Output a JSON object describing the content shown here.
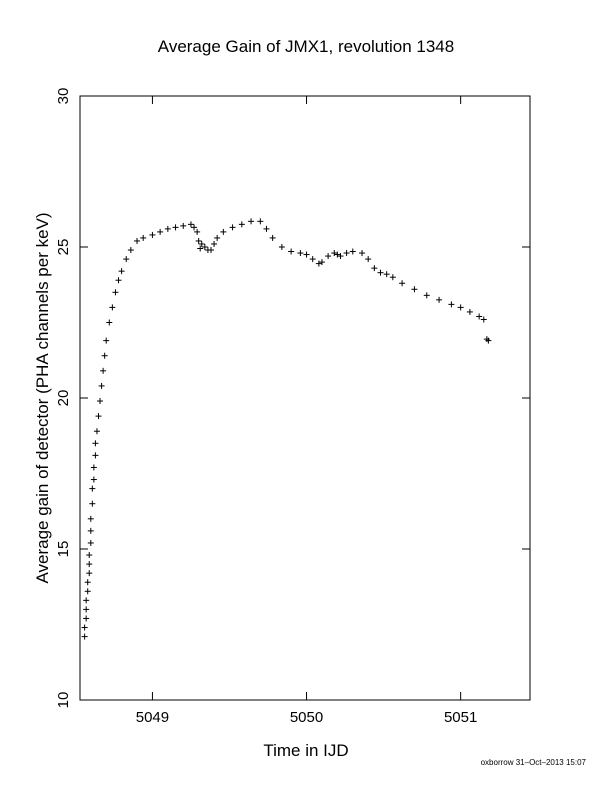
{
  "chart_data": {
    "type": "scatter",
    "title": "Average Gain of JMX1, revolution 1348",
    "xlabel": "Time in IJD",
    "ylabel": "Average gain of detector (PHA channels per keV)",
    "xlim": [
      5048.53,
      5051.45
    ],
    "ylim": [
      10,
      30
    ],
    "xticks": [
      5049,
      5050,
      5051
    ],
    "xticklabels": [
      "5049",
      "5050",
      "5051"
    ],
    "yticks": [
      10,
      15,
      20,
      25,
      30
    ],
    "yticklabels": [
      "10",
      "15",
      "20",
      "25",
      "30"
    ],
    "marker": "plus",
    "marker_color": "#000000",
    "grid": false,
    "series": [
      {
        "name": "",
        "x": [
          5048.56,
          5048.56,
          5048.57,
          5048.57,
          5048.57,
          5048.58,
          5048.58,
          5048.59,
          5048.59,
          5048.59,
          5048.6,
          5048.6,
          5048.6,
          5048.61,
          5048.61,
          5048.62,
          5048.62,
          5048.63,
          5048.63,
          5048.64,
          5048.65,
          5048.66,
          5048.67,
          5048.68,
          5048.69,
          5048.7,
          5048.72,
          5048.74,
          5048.76,
          5048.78,
          5048.8,
          5048.83,
          5048.86,
          5048.9,
          5048.94,
          5049.0,
          5049.05,
          5049.1,
          5049.15,
          5049.2,
          5049.25,
          5049.27,
          5049.29,
          5049.3,
          5049.31,
          5049.32,
          5049.34,
          5049.36,
          5049.38,
          5049.4,
          5049.42,
          5049.46,
          5049.52,
          5049.58,
          5049.64,
          5049.7,
          5049.74,
          5049.78,
          5049.84,
          5049.9,
          5049.96,
          5050.0,
          5050.04,
          5050.08,
          5050.1,
          5050.14,
          5050.18,
          5050.2,
          5050.22,
          5050.26,
          5050.3,
          5050.36,
          5050.4,
          5050.44,
          5050.48,
          5050.52,
          5050.56,
          5050.62,
          5050.7,
          5050.78,
          5050.86,
          5050.94,
          5051.0,
          5051.06,
          5051.12,
          5051.15,
          5051.17,
          5051.18
        ],
        "y": [
          12.1,
          12.4,
          12.7,
          13.0,
          13.3,
          13.6,
          13.9,
          14.2,
          14.5,
          14.8,
          15.2,
          15.6,
          16.0,
          16.5,
          17.0,
          17.3,
          17.7,
          18.1,
          18.5,
          18.9,
          19.4,
          19.9,
          20.4,
          20.9,
          21.4,
          21.9,
          22.5,
          23.0,
          23.5,
          23.9,
          24.2,
          24.6,
          24.9,
          25.2,
          25.3,
          25.4,
          25.5,
          25.6,
          25.65,
          25.7,
          25.75,
          25.65,
          25.5,
          25.2,
          24.95,
          25.1,
          25.0,
          24.9,
          24.9,
          25.1,
          25.3,
          25.5,
          25.65,
          25.75,
          25.85,
          25.85,
          25.6,
          25.3,
          25.0,
          24.85,
          24.8,
          24.75,
          24.6,
          24.45,
          24.5,
          24.7,
          24.8,
          24.75,
          24.7,
          24.8,
          24.85,
          24.8,
          24.6,
          24.3,
          24.15,
          24.1,
          24.0,
          23.8,
          23.6,
          23.4,
          23.25,
          23.1,
          23.0,
          22.85,
          22.7,
          22.6,
          21.95,
          21.9
        ]
      }
    ]
  },
  "footer": {
    "text": "oxborrow 31–Oct–2013 15:07"
  }
}
